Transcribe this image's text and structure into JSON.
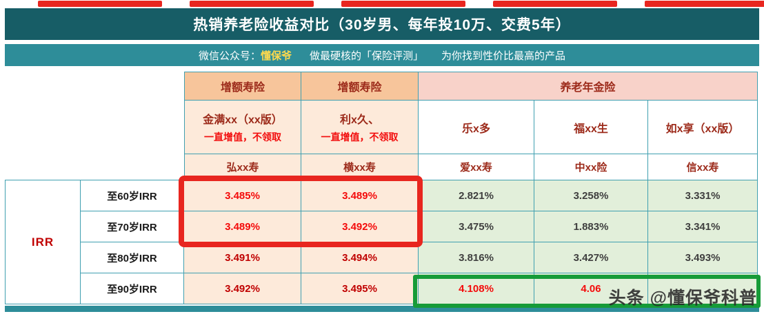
{
  "header": {
    "title": "热销养老险收益对比（30岁男、每年投10万、交费5年）"
  },
  "subtitle": {
    "label": "微信公众号：",
    "brand": "懂保爷",
    "middle": "做最硬核的「保险评测」",
    "tail": "为你找到性价比最高的产品"
  },
  "table": {
    "corner_label": "IRR",
    "groups": [
      {
        "label": "增额寿险"
      },
      {
        "label": "增额寿险"
      },
      {
        "label": "养老年金险"
      }
    ],
    "products": [
      {
        "name": "金满xx（xx版）",
        "note": "一直增值，不领取",
        "company": "弘xx寿"
      },
      {
        "name": "利x久、",
        "note": "一直增值，不领取",
        "company": "横xx寿"
      },
      {
        "name": "乐x多",
        "note": "",
        "company": "爱xx寿"
      },
      {
        "name": "福xx生",
        "note": "",
        "company": "中xx险"
      },
      {
        "name": "如x享（xx版）",
        "note": "",
        "company": "信xx寿"
      }
    ],
    "rows": [
      {
        "label": "至60岁IRR",
        "values": [
          "3.485%",
          "3.489%",
          "2.821%",
          "3.258%",
          "3.331%"
        ]
      },
      {
        "label": "至70岁IRR",
        "values": [
          "3.489%",
          "3.492%",
          "3.475%",
          "1.883%",
          "3.341%"
        ]
      },
      {
        "label": "至80岁IRR",
        "values": [
          "3.491%",
          "3.494%",
          "3.816%",
          "3.427%",
          "3.493%"
        ]
      },
      {
        "label": "至90岁IRR",
        "values": [
          "3.492%",
          "3.495%",
          "4.108%",
          "4.06",
          ""
        ]
      }
    ]
  },
  "watermark": "头条 @懂保爷科普",
  "chart_data": {
    "type": "table",
    "title": "热销养老险收益对比（30岁男、每年投10万、交费5年）",
    "column_groups": [
      "增额寿险",
      "增额寿险",
      "养老年金险",
      "养老年金险",
      "养老年金险"
    ],
    "columns": [
      {
        "product": "金满xx（xx版）",
        "note": "一直增值，不领取",
        "company": "弘xx寿"
      },
      {
        "product": "利x久",
        "note": "一直增值，不领取",
        "company": "横xx寿"
      },
      {
        "product": "乐x多",
        "note": "",
        "company": "爱xx寿"
      },
      {
        "product": "福xx生",
        "note": "",
        "company": "中xx险"
      },
      {
        "product": "如x享（xx版）",
        "note": "",
        "company": "信xx寿"
      }
    ],
    "row_labels": [
      "至60岁IRR",
      "至70岁IRR",
      "至80岁IRR",
      "至90岁IRR"
    ],
    "values_pct": [
      [
        3.485,
        3.489,
        2.821,
        3.258,
        3.331
      ],
      [
        3.489,
        3.492,
        3.475,
        1.883,
        3.341
      ],
      [
        3.491,
        3.494,
        3.816,
        3.427,
        3.493
      ],
      [
        3.492,
        3.495,
        4.108,
        4.06,
        null
      ]
    ],
    "notes": "row 至90岁IRR: 4th value partially obscured and 5th value fully obscured by watermark; red box highlights 增额寿险 60/70岁 IRR; green box highlights 养老年金险 90岁 IRR"
  }
}
